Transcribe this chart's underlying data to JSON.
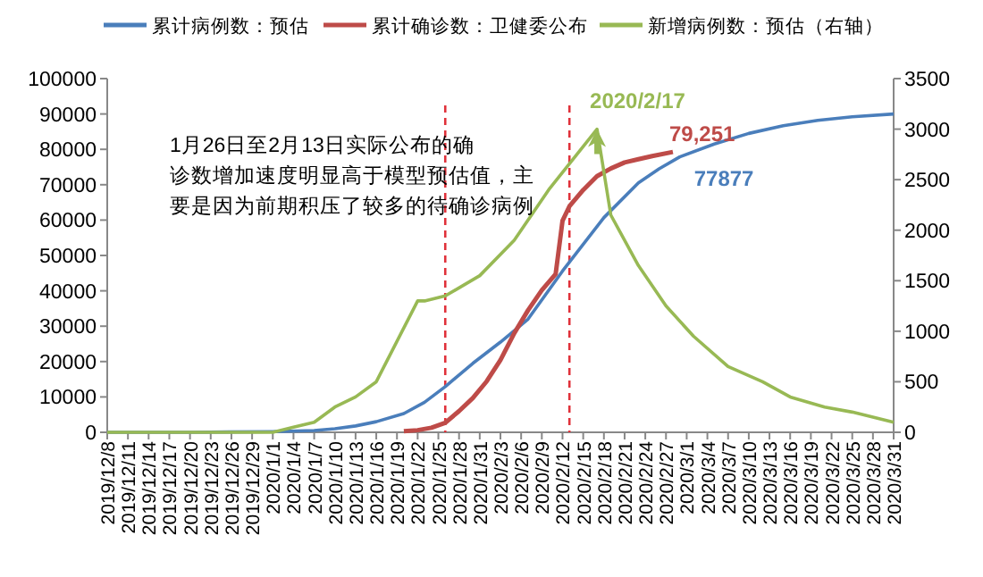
{
  "chart_data": {
    "type": "line",
    "legend": "top",
    "line_style": "solid",
    "marker": "none",
    "xlim": [
      "2019-12-08",
      "2020-03-31"
    ],
    "xticks": [
      {
        "value": "2019-12-08",
        "label": "2019/12/8"
      },
      {
        "value": "2019-12-11",
        "label": "2019/12/11"
      },
      {
        "value": "2019-12-14",
        "label": "2019/12/14"
      },
      {
        "value": "2019-12-17",
        "label": "2019/12/17"
      },
      {
        "value": "2019-12-20",
        "label": "2019/12/20"
      },
      {
        "value": "2019-12-23",
        "label": "2019/12/23"
      },
      {
        "value": "2019-12-26",
        "label": "2019/12/26"
      },
      {
        "value": "2019-12-29",
        "label": "2019/12/29"
      },
      {
        "value": "2020-01-01",
        "label": "2020/1/1"
      },
      {
        "value": "2020-01-04",
        "label": "2020/1/4"
      },
      {
        "value": "2020-01-07",
        "label": "2020/1/7"
      },
      {
        "value": "2020-01-10",
        "label": "2020/1/10"
      },
      {
        "value": "2020-01-13",
        "label": "2020/1/13"
      },
      {
        "value": "2020-01-16",
        "label": "2020/1/16"
      },
      {
        "value": "2020-01-19",
        "label": "2020/1/19"
      },
      {
        "value": "2020-01-22",
        "label": "2020/1/22"
      },
      {
        "value": "2020-01-25",
        "label": "2020/1/25"
      },
      {
        "value": "2020-01-28",
        "label": "2020/1/28"
      },
      {
        "value": "2020-01-31",
        "label": "2020/1/31"
      },
      {
        "value": "2020-02-03",
        "label": "2020/2/3"
      },
      {
        "value": "2020-02-06",
        "label": "2020/2/6"
      },
      {
        "value": "2020-02-09",
        "label": "2020/2/9"
      },
      {
        "value": "2020-02-12",
        "label": "2020/2/12"
      },
      {
        "value": "2020-02-15",
        "label": "2020/2/15"
      },
      {
        "value": "2020-02-18",
        "label": "2020/2/18"
      },
      {
        "value": "2020-02-21",
        "label": "2020/2/21"
      },
      {
        "value": "2020-02-24",
        "label": "2020/2/24"
      },
      {
        "value": "2020-02-27",
        "label": "2020/2/27"
      },
      {
        "value": "2020-03-01",
        "label": "2020/3/1"
      },
      {
        "value": "2020-03-04",
        "label": "2020/3/4"
      },
      {
        "value": "2020-03-07",
        "label": "2020/3/7"
      },
      {
        "value": "2020-03-10",
        "label": "2020/3/10"
      },
      {
        "value": "2020-03-13",
        "label": "2020/3/13"
      },
      {
        "value": "2020-03-16",
        "label": "2020/3/16"
      },
      {
        "value": "2020-03-19",
        "label": "2020/3/19"
      },
      {
        "value": "2020-03-22",
        "label": "2020/3/22"
      },
      {
        "value": "2020-03-25",
        "label": "2020/3/25"
      },
      {
        "value": "2020-03-28",
        "label": "2020/3/28"
      },
      {
        "value": "2020-03-31",
        "label": "2020/3/31"
      }
    ],
    "ylim": [
      0,
      100000
    ],
    "yticks": [
      0,
      10000,
      20000,
      30000,
      40000,
      50000,
      60000,
      70000,
      80000,
      90000,
      100000
    ],
    "y2lim": [
      0,
      3500
    ],
    "y2ticks": [
      0,
      500,
      1000,
      1500,
      2000,
      2500,
      3000,
      3500
    ],
    "series": [
      {
        "name": "累计病例数：预估",
        "color": "#4a7ebb",
        "x": [
          "2019-12-08",
          "2019-12-20",
          "2020-01-01",
          "2020-01-07",
          "2020-01-10",
          "2020-01-13",
          "2020-01-16",
          "2020-01-20",
          "2020-01-23",
          "2020-01-26",
          "2020-01-30",
          "2020-02-03",
          "2020-02-07",
          "2020-02-12",
          "2020-02-18",
          "2020-02-23",
          "2020-02-26",
          "2020-02-29",
          "2020-03-05",
          "2020-03-10",
          "2020-03-15",
          "2020-03-20",
          "2020-03-25",
          "2020-03-31"
        ],
        "values": [
          0,
          0,
          200,
          500,
          1000,
          1800,
          3000,
          5300,
          8500,
          12900,
          19500,
          25500,
          32000,
          45600,
          60700,
          70500,
          74500,
          77877,
          81500,
          84500,
          86700,
          88200,
          89200,
          90000
        ]
      },
      {
        "name": "累计确诊数：卫健委公布",
        "color": "#be4b48",
        "x": [
          "2020-01-20",
          "2020-01-22",
          "2020-01-24",
          "2020-01-26",
          "2020-01-28",
          "2020-01-30",
          "2020-02-01",
          "2020-02-03",
          "2020-02-05",
          "2020-02-07",
          "2020-02-09",
          "2020-02-11",
          "2020-02-12",
          "2020-02-13",
          "2020-02-15",
          "2020-02-17",
          "2020-02-19",
          "2020-02-21",
          "2020-02-23",
          "2020-02-25",
          "2020-02-28"
        ],
        "values": [
          300,
          600,
          1300,
          2700,
          6000,
          9700,
          14400,
          20400,
          28000,
          34500,
          40200,
          44700,
          59800,
          63900,
          68500,
          72400,
          74600,
          76300,
          77200,
          78100,
          79251
        ]
      },
      {
        "name": "新增病例数：预估（右轴）",
        "color": "#98b954",
        "axis": "y2",
        "x": [
          "2019-12-08",
          "2019-12-20",
          "2020-01-01",
          "2020-01-04",
          "2020-01-07",
          "2020-01-10",
          "2020-01-13",
          "2020-01-16",
          "2020-01-19",
          "2020-01-22",
          "2020-01-23",
          "2020-01-26",
          "2020-01-31",
          "2020-02-05",
          "2020-02-10",
          "2020-02-17",
          "2020-02-19",
          "2020-02-23",
          "2020-02-27",
          "2020-03-02",
          "2020-03-07",
          "2020-03-12",
          "2020-03-16",
          "2020-03-21",
          "2020-03-25",
          "2020-03-31"
        ],
        "values": [
          0,
          0,
          0,
          50,
          100,
          250,
          350,
          500,
          900,
          1300,
          1300,
          1350,
          1550,
          1900,
          2400,
          3000,
          2150,
          1650,
          1250,
          950,
          650,
          500,
          350,
          250,
          200,
          100
        ]
      }
    ],
    "ref_lines": [
      {
        "axis": "x",
        "value": "2020-01-26",
        "color": "#e0313a",
        "line_style": "dashed"
      },
      {
        "axis": "x",
        "value": "2020-02-13",
        "color": "#e0313a",
        "line_style": "dashed"
      }
    ],
    "annotations": [
      "1月26日至2月13日实际公布的确诊数增加速度明显高于模型预估值，主要是因为前期积压了较多的待确诊病例",
      "2020/2/17",
      {
        "text": "79,251",
        "x": "2020-02-28",
        "y": 79251
      },
      {
        "text": "77877",
        "x": "2020-02-29",
        "y": 77877
      }
    ]
  }
}
